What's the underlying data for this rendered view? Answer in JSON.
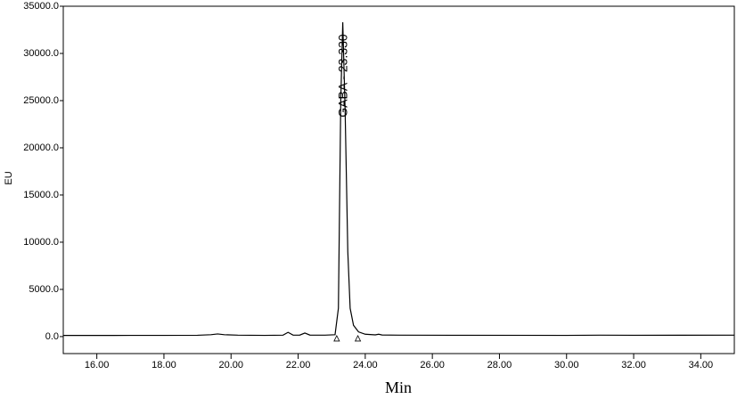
{
  "chart_data": {
    "type": "line",
    "xlabel": "Min",
    "ylabel": "EU",
    "annotation": "GABA - 23.330",
    "color": "#000000",
    "x": [
      15,
      16,
      17,
      18,
      19,
      19.4,
      19.6,
      19.8,
      20.2,
      21,
      21.55,
      21.7,
      21.85,
      22.05,
      22.2,
      22.35,
      22.8,
      23.1,
      23.2,
      23.27,
      23.33,
      23.4,
      23.48,
      23.55,
      23.65,
      23.8,
      24.0,
      24.3,
      24.4,
      24.5,
      25,
      27,
      30,
      31,
      32,
      35
    ],
    "values": [
      120,
      120,
      130,
      130,
      140,
      200,
      280,
      200,
      150,
      130,
      150,
      450,
      150,
      160,
      380,
      160,
      150,
      200,
      3000,
      25000,
      33300,
      24000,
      9000,
      3000,
      1200,
      500,
      250,
      180,
      250,
      170,
      150,
      140,
      130,
      150,
      140,
      150
    ],
    "peak_limits": [
      23.15,
      23.78
    ],
    "xlim": [
      15,
      35
    ],
    "ylim": [
      -1800,
      35000
    ],
    "xticks": [
      {
        "value": 16,
        "label": "16.00"
      },
      {
        "value": 18,
        "label": "18.00"
      },
      {
        "value": 20,
        "label": "20.00"
      },
      {
        "value": 22,
        "label": "22.00"
      },
      {
        "value": 24,
        "label": "24.00"
      },
      {
        "value": 26,
        "label": "26.00"
      },
      {
        "value": 28,
        "label": "28.00"
      },
      {
        "value": 30,
        "label": "30.00"
      },
      {
        "value": 32,
        "label": "32.00"
      },
      {
        "value": 34,
        "label": "34.00"
      }
    ],
    "yticks": [
      {
        "value": 0,
        "label": "0.0"
      },
      {
        "value": 5000,
        "label": "5000.0"
      },
      {
        "value": 10000,
        "label": "10000.0"
      },
      {
        "value": 15000,
        "label": "15000.0"
      },
      {
        "value": 20000,
        "label": "20000.0"
      },
      {
        "value": 25000,
        "label": "25000.0"
      },
      {
        "value": 30000,
        "label": "30000.0"
      },
      {
        "value": 35000,
        "label": "35000.0"
      }
    ]
  }
}
